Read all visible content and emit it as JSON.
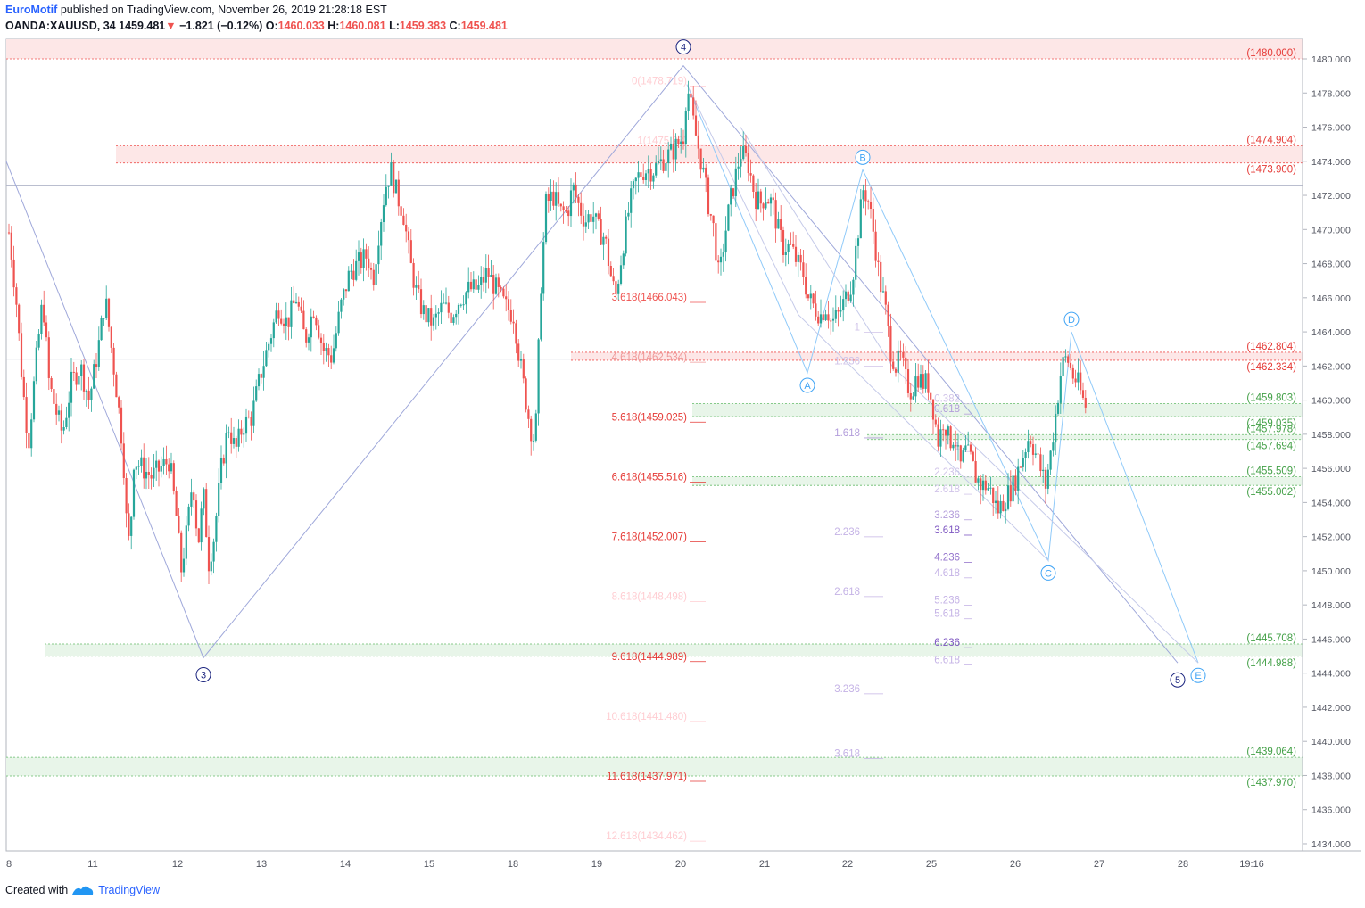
{
  "header": {
    "author": "EuroMotif",
    "published": "published on TradingView.com, November 26, 2019 21:28:18 EST",
    "symbol": "OANDA:XAUUSD, 34",
    "last": "1459.481",
    "change": "−1.821 (−0.12%)",
    "o_label": "O:",
    "o_value": "1460.033",
    "h_label": "H:",
    "h_value": "1460.081",
    "l_label": "L:",
    "l_value": "1459.383",
    "c_label": "C:",
    "c_value": "1459.481"
  },
  "footer": {
    "created_with": "Created with",
    "brand": "TradingView"
  },
  "colors": {
    "up": "#26a69a",
    "down": "#ef5350",
    "wave": "#9fa8da",
    "waveABC": "#90caf9",
    "zone_red": "#fde7e7",
    "zone_green": "#e8f5e9"
  },
  "chart_data": {
    "type": "candlestick",
    "symbol": "OANDA:XAUUSD",
    "interval": "34",
    "ylim": [
      1434,
      1481
    ],
    "y_ticks": [
      "1480.000",
      "1478.000",
      "1476.000",
      "1474.000",
      "1472.000",
      "1470.000",
      "1468.000",
      "1466.000",
      "1464.000",
      "1462.000",
      "1460.000",
      "1458.000",
      "1456.000",
      "1454.000",
      "1452.000",
      "1450.000",
      "1448.000",
      "1446.000",
      "1444.000",
      "1442.000",
      "1440.000",
      "1438.000",
      "1436.000",
      "1434.000"
    ],
    "x_ticks": [
      "8",
      "11",
      "12",
      "13",
      "14",
      "15",
      "18",
      "19",
      "20",
      "21",
      "22",
      "25",
      "26",
      "27",
      "28",
      "19:16"
    ],
    "price_path": [
      [
        0,
        1470
      ],
      [
        6,
        1471.5
      ],
      [
        12,
        1469
      ],
      [
        18,
        1466
      ],
      [
        25,
        1461
      ],
      [
        32,
        1457.5
      ],
      [
        40,
        1462
      ],
      [
        48,
        1466
      ],
      [
        55,
        1461
      ],
      [
        62,
        1459.5
      ],
      [
        70,
        1458
      ],
      [
        80,
        1461
      ],
      [
        90,
        1462
      ],
      [
        100,
        1460
      ],
      [
        110,
        1463
      ],
      [
        118,
        1466
      ],
      [
        125,
        1463
      ],
      [
        132,
        1460
      ],
      [
        138,
        1457
      ],
      [
        143,
        1451.5
      ],
      [
        146,
        1452
      ],
      [
        150,
        1456.5
      ],
      [
        160,
        1456
      ],
      [
        170,
        1455.5
      ],
      [
        180,
        1456
      ],
      [
        190,
        1456.5
      ],
      [
        198,
        1453
      ],
      [
        203,
        1450
      ],
      [
        210,
        1452.5
      ],
      [
        216,
        1455.5
      ],
      [
        222,
        1451.5
      ],
      [
        228,
        1454.5
      ],
      [
        234,
        1450.5
      ],
      [
        240,
        1452
      ],
      [
        248,
        1456
      ],
      [
        256,
        1458.5
      ],
      [
        264,
        1457
      ],
      [
        272,
        1458.5
      ],
      [
        282,
        1459
      ],
      [
        292,
        1461.5
      ],
      [
        302,
        1463.5
      ],
      [
        312,
        1465.5
      ],
      [
        322,
        1464.5
      ],
      [
        332,
        1466
      ],
      [
        342,
        1463.5
      ],
      [
        352,
        1465.5
      ],
      [
        362,
        1463
      ],
      [
        372,
        1462.5
      ],
      [
        382,
        1465.5
      ],
      [
        392,
        1467.5
      ],
      [
        402,
        1468
      ],
      [
        412,
        1468.5
      ],
      [
        418,
        1467
      ],
      [
        425,
        1470
      ],
      [
        432,
        1472.5
      ],
      [
        438,
        1473.5
      ],
      [
        445,
        1472
      ],
      [
        452,
        1471
      ],
      [
        460,
        1468
      ],
      [
        468,
        1466
      ],
      [
        476,
        1465
      ],
      [
        486,
        1464.5
      ],
      [
        496,
        1465.5
      ],
      [
        506,
        1465
      ],
      [
        516,
        1466
      ],
      [
        526,
        1466.5
      ],
      [
        536,
        1466.5
      ],
      [
        546,
        1467.5
      ],
      [
        556,
        1466.5
      ],
      [
        566,
        1465.5
      ],
      [
        576,
        1465
      ],
      [
        582,
        1462.5
      ],
      [
        588,
        1460.5
      ],
      [
        594,
        1458.5
      ],
      [
        600,
        1457.5
      ],
      [
        606,
        1466.5
      ],
      [
        612,
        1471.5
      ],
      [
        620,
        1472
      ],
      [
        628,
        1471
      ],
      [
        636,
        1471
      ],
      [
        642,
        1472.5
      ],
      [
        648,
        1471.5
      ],
      [
        656,
        1470.5
      ],
      [
        664,
        1471
      ],
      [
        670,
        1470
      ],
      [
        678,
        1469.5
      ],
      [
        684,
        1467.5
      ],
      [
        690,
        1466
      ],
      [
        698,
        1469
      ],
      [
        706,
        1471.5
      ],
      [
        714,
        1473
      ],
      [
        722,
        1473.5
      ],
      [
        732,
        1473.5
      ],
      [
        742,
        1474
      ],
      [
        752,
        1474.5
      ],
      [
        760,
        1475
      ],
      [
        766,
        1475.5
      ],
      [
        770,
        1478.5
      ],
      [
        778,
        1476
      ],
      [
        786,
        1474
      ],
      [
        794,
        1471.5
      ],
      [
        800,
        1470
      ],
      [
        806,
        1467
      ],
      [
        812,
        1469.5
      ],
      [
        818,
        1471.5
      ],
      [
        824,
        1473
      ],
      [
        830,
        1474.5
      ],
      [
        838,
        1474
      ],
      [
        846,
        1472
      ],
      [
        852,
        1471.5
      ],
      [
        858,
        1472
      ],
      [
        866,
        1471.5
      ],
      [
        872,
        1470
      ],
      [
        878,
        1469
      ],
      [
        886,
        1469
      ],
      [
        894,
        1468
      ],
      [
        900,
        1467.5
      ],
      [
        906,
        1466
      ],
      [
        912,
        1465.5
      ],
      [
        920,
        1465
      ],
      [
        926,
        1465.5
      ],
      [
        932,
        1464.5
      ],
      [
        940,
        1465
      ],
      [
        948,
        1466
      ],
      [
        955,
        1467
      ],
      [
        962,
        1470
      ],
      [
        968,
        1472.5
      ],
      [
        974,
        1471.5
      ],
      [
        980,
        1469.5
      ],
      [
        986,
        1467
      ],
      [
        992,
        1465.5
      ],
      [
        998,
        1463
      ],
      [
        1004,
        1462
      ],
      [
        1010,
        1462.5
      ],
      [
        1016,
        1461
      ],
      [
        1022,
        1460.5
      ],
      [
        1028,
        1461.5
      ],
      [
        1034,
        1461
      ],
      [
        1040,
        1461
      ],
      [
        1046,
        1459.5
      ],
      [
        1052,
        1457.5
      ],
      [
        1058,
        1459
      ],
      [
        1064,
        1457.5
      ],
      [
        1070,
        1458
      ],
      [
        1076,
        1456
      ],
      [
        1082,
        1457
      ],
      [
        1088,
        1456.5
      ],
      [
        1094,
        1455.5
      ],
      [
        1100,
        1455
      ],
      [
        1106,
        1455
      ],
      [
        1112,
        1454.5
      ],
      [
        1118,
        1453.5
      ],
      [
        1124,
        1454
      ],
      [
        1130,
        1454.5
      ],
      [
        1136,
        1455
      ],
      [
        1142,
        1456
      ],
      [
        1148,
        1457
      ],
      [
        1154,
        1458
      ],
      [
        1160,
        1457
      ],
      [
        1166,
        1456
      ],
      [
        1172,
        1455
      ],
      [
        1178,
        1457
      ],
      [
        1184,
        1459.5
      ],
      [
        1190,
        1462
      ],
      [
        1196,
        1462.5
      ],
      [
        1202,
        1461.5
      ],
      [
        1208,
        1461
      ],
      [
        1214,
        1460
      ],
      [
        1218,
        1459.5
      ]
    ],
    "wave_points_degree": [
      {
        "label": "3",
        "price": 1444.9
      },
      {
        "label": "4",
        "price": 1479.6
      },
      {
        "label": "5",
        "price": 1444.6
      }
    ],
    "wave_points_abcde": [
      {
        "label": "A",
        "price": 1461.6
      },
      {
        "label": "B",
        "price": 1473.5
      },
      {
        "label": "C",
        "price": 1450.6
      },
      {
        "label": "D",
        "price": 1464.0
      },
      {
        "label": "E",
        "price": 1444.6
      }
    ],
    "zones": [
      {
        "color": "red",
        "top": 1474.904,
        "bottom": 1473.9,
        "labels": [
          "(1474.904)",
          "(1473.900)"
        ]
      },
      {
        "color": "red",
        "top": 1462.804,
        "bottom": 1462.334,
        "labels": [
          "(1462.804)",
          "(1462.334)"
        ]
      },
      {
        "color": "green",
        "top": 1459.803,
        "bottom": 1459.035,
        "labels": [
          "(1459.803)",
          "(1459.035)"
        ]
      },
      {
        "color": "green",
        "top": 1457.978,
        "bottom": 1457.694,
        "labels": [
          "(1457.978)",
          "(1457.694)"
        ]
      },
      {
        "color": "green",
        "top": 1455.509,
        "bottom": 1455.002,
        "labels": [
          "(1455.509)",
          "(1455.002)"
        ]
      },
      {
        "color": "green",
        "top": 1445.708,
        "bottom": 1444.988,
        "labels": [
          "(1445.708)",
          "(1444.988)"
        ]
      },
      {
        "color": "green",
        "top": 1439.064,
        "bottom": 1437.97,
        "labels": [
          "(1439.064)",
          "(1437.970)"
        ]
      }
    ],
    "top_level": {
      "price": 1480.0,
      "label": "(1480.000)"
    },
    "gray_lines": [
      1472.6,
      1462.4
    ],
    "fib_extension_main": [
      {
        "label": "0(1478.719)",
        "price": 1478.719,
        "color": "#ffcdd2"
      },
      {
        "label": "1(1475.23)",
        "price": 1475.23,
        "color": "#ffcdd2"
      },
      {
        "label": "3.618(1466.043)",
        "price": 1466.043,
        "color": "#ef5350"
      },
      {
        "label": "4.618(1462.534)",
        "price": 1462.534,
        "color": "#ef9a9a"
      },
      {
        "label": "5.618(1459.025)",
        "price": 1459.025,
        "color": "#e53935"
      },
      {
        "label": "6.618(1455.516)",
        "price": 1455.516,
        "color": "#e53935"
      },
      {
        "label": "7.618(1452.007)",
        "price": 1452.007,
        "color": "#e53935"
      },
      {
        "label": "8.618(1448.498)",
        "price": 1448.498,
        "color": "#ffcdd2"
      },
      {
        "label": "9.618(1444.989)",
        "price": 1444.989,
        "color": "#e53935"
      },
      {
        "label": "10.618(1441.480)",
        "price": 1441.48,
        "color": "#ffcdd2"
      },
      {
        "label": "11.618(1437.971)",
        "price": 1437.971,
        "color": "#e53935"
      },
      {
        "label": "12.618(1434.462)",
        "price": 1434.462,
        "color": "#ffcdd2"
      }
    ],
    "fib_extension_mid": [
      {
        "label": "1",
        "price": 1464.3,
        "color": "#d1c4e9"
      },
      {
        "label": "1.236",
        "price": 1462.3,
        "color": "#d1c4e9"
      },
      {
        "label": "1.618",
        "price": 1458.1,
        "color": "#b39ddb"
      },
      {
        "label": "2.236",
        "price": 1452.3,
        "color": "#c5b3e6"
      },
      {
        "label": "2.618",
        "price": 1448.8,
        "color": "#c5b3e6"
      },
      {
        "label": "3.236",
        "price": 1443.1,
        "color": "#c5b3e6"
      },
      {
        "label": "3.618",
        "price": 1439.3,
        "color": "#c5b3e6"
      }
    ],
    "fib_extension_right": [
      {
        "label": "0.382",
        "price": 1460.1,
        "color": "#d1c4e9"
      },
      {
        "label": "0.618",
        "price": 1459.5,
        "color": "#b39ddb"
      },
      {
        "label": "1",
        "price": 1457.3,
        "color": "#d1c4e9"
      },
      {
        "label": "2.236",
        "price": 1455.8,
        "color": "#d1c4e9"
      },
      {
        "label": "2.618",
        "price": 1454.8,
        "color": "#d1c4e9"
      },
      {
        "label": "3.236",
        "price": 1453.3,
        "color": "#b39ddb"
      },
      {
        "label": "3.618",
        "price": 1452.4,
        "color": "#7e57c2"
      },
      {
        "label": "4.236",
        "price": 1450.8,
        "color": "#9575cd"
      },
      {
        "label": "4.618",
        "price": 1449.9,
        "color": "#c5b3e6"
      },
      {
        "label": "5.236",
        "price": 1448.3,
        "color": "#c5b3e6"
      },
      {
        "label": "5.618",
        "price": 1447.5,
        "color": "#c5b3e6"
      },
      {
        "label": "6.236",
        "price": 1445.8,
        "color": "#7e57c2"
      },
      {
        "label": "6.618",
        "price": 1444.8,
        "color": "#c5b3e6"
      }
    ]
  }
}
